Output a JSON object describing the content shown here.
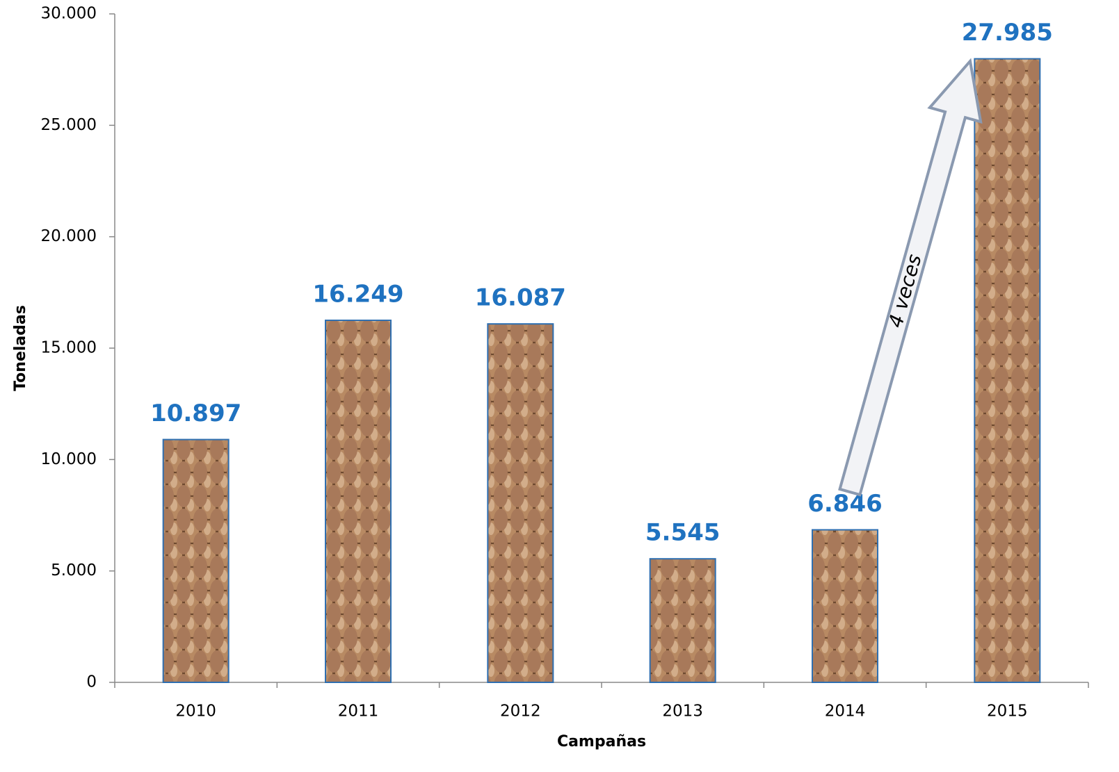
{
  "chart_data": {
    "type": "bar",
    "x_label": "Campañas",
    "y_label": "Toneladas",
    "categories": [
      "2010",
      "2011",
      "2012",
      "2013",
      "2014",
      "2015"
    ],
    "values": [
      10897,
      16249,
      16087,
      5545,
      6846,
      27985
    ],
    "value_labels": [
      "10.897",
      "16.249",
      "16.087",
      "5.545",
      "6.846",
      "27.985"
    ],
    "color": "#a0714f",
    "ylim": [
      0,
      30000
    ],
    "yticks": [
      0,
      {
        "value": 5000,
        "label": "5.000"
      },
      {
        "value": 10000,
        "label": "10.000"
      },
      {
        "value": 15000,
        "label": "15.000"
      },
      {
        "value": 20000,
        "label": "20.000"
      },
      {
        "value": 25000,
        "label": "25.000"
      },
      {
        "value": 30000,
        "label": "30.000"
      }
    ],
    "annotation": "4 veces"
  }
}
